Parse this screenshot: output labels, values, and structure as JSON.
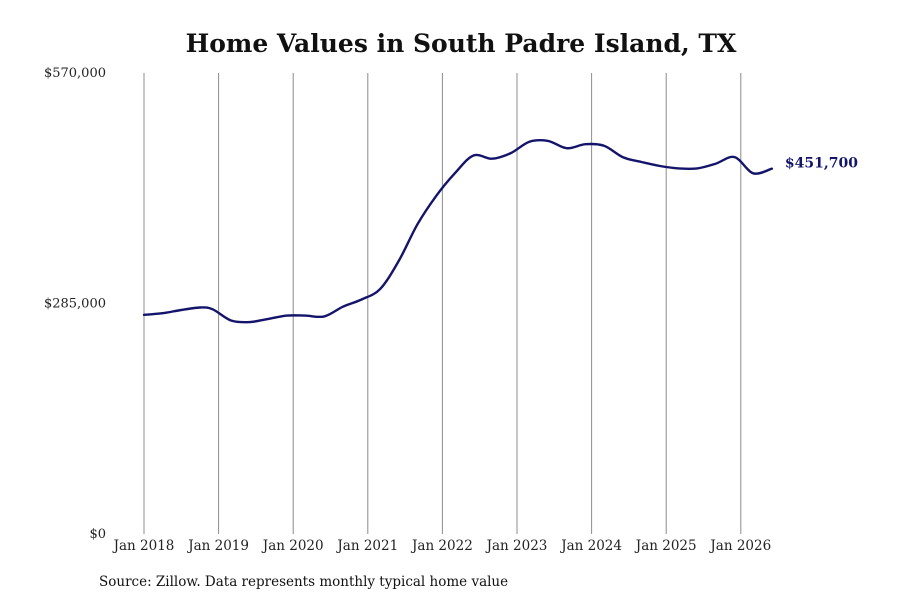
{
  "chart_data": {
    "type": "line",
    "title": "Home Values in South Padre Island, TX",
    "xlabel": "",
    "ylabel": "",
    "ylim": [
      0,
      570000
    ],
    "y_ticks": [
      0,
      285000,
      570000
    ],
    "y_tick_labels": [
      "$0",
      "$285,000",
      "$570,000"
    ],
    "x_ticks": [
      "2018-01",
      "2019-01",
      "2020-01",
      "2021-01",
      "2022-01",
      "2023-01",
      "2024-01",
      "2025-01",
      "2026-01"
    ],
    "x_tick_labels": [
      "Jan 2018",
      "Jan 2019",
      "Jan 2020",
      "Jan 2021",
      "Jan 2022",
      "Jan 2023",
      "Jan 2024",
      "Jan 2025",
      "Jan 2026"
    ],
    "grid": {
      "vertical": true,
      "horizontal": false
    },
    "line_color": "#14146b",
    "series": [
      {
        "name": "",
        "x": [
          "2018-01",
          "2018-04",
          "2018-07",
          "2018-10",
          "2018-12",
          "2019-03",
          "2019-06",
          "2019-09",
          "2019-12",
          "2020-03",
          "2020-06",
          "2020-09",
          "2020-12",
          "2021-03",
          "2021-06",
          "2021-09",
          "2021-12",
          "2022-03",
          "2022-06",
          "2022-09",
          "2022-12",
          "2023-03",
          "2023-06",
          "2023-09",
          "2023-12",
          "2024-03",
          "2024-06",
          "2024-09",
          "2024-12",
          "2025-03",
          "2025-06",
          "2025-09",
          "2025-12",
          "2026-03",
          "2026-06"
        ],
        "values": [
          271000,
          273000,
          277000,
          280000,
          278000,
          264000,
          262000,
          266000,
          270000,
          270000,
          269000,
          281000,
          290000,
          303000,
          338000,
          383000,
          418000,
          446000,
          468000,
          464000,
          471000,
          485000,
          486000,
          477000,
          482000,
          480000,
          466000,
          460000,
          455000,
          452000,
          452000,
          458000,
          466000,
          446000,
          451700
        ]
      }
    ],
    "end_label": "$451,700",
    "source": "Source: Zillow. Data represents monthly typical home value"
  }
}
